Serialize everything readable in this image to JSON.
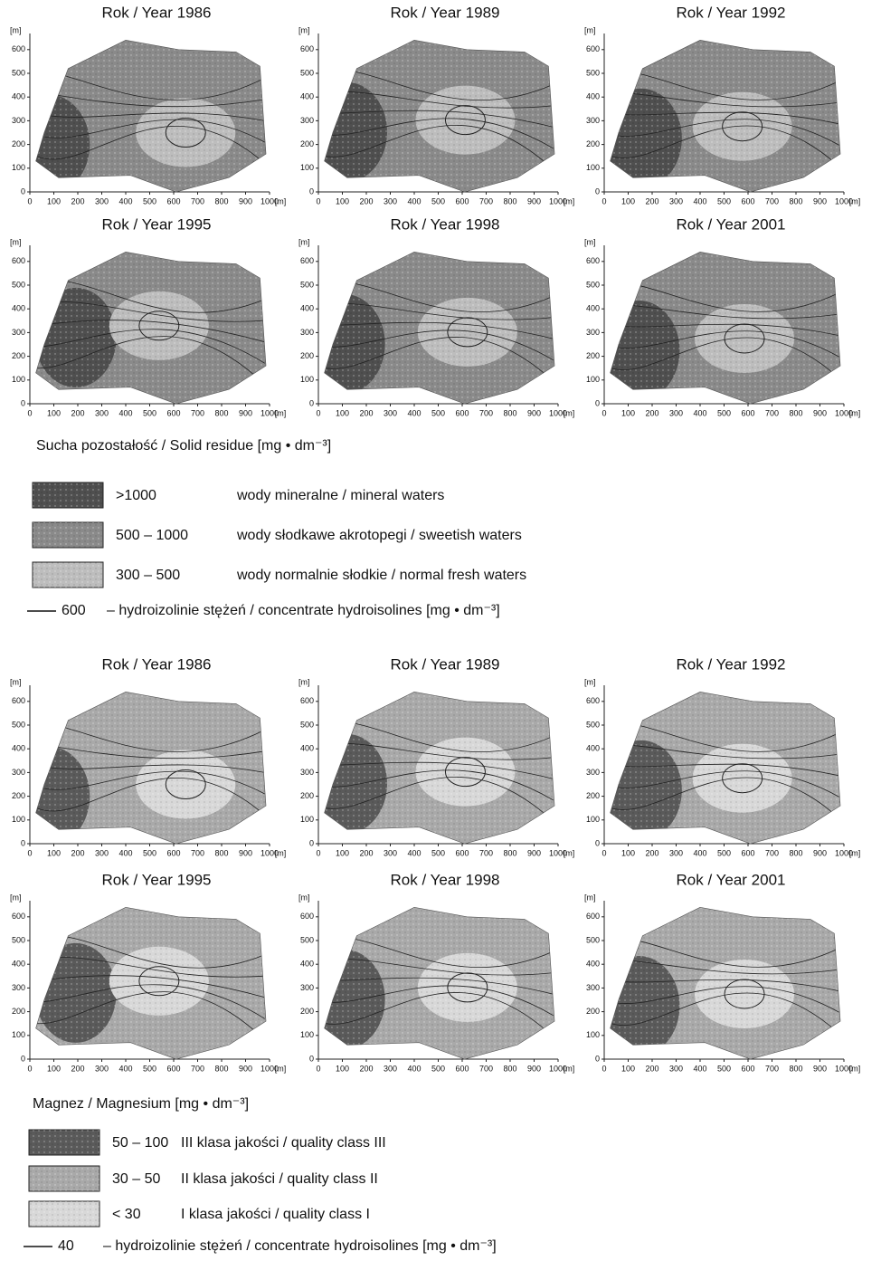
{
  "sections": [
    {
      "maps": [
        {
          "title": "Rok / Year 1986"
        },
        {
          "title": "Rok / Year 1989"
        },
        {
          "title": "Rok / Year 1992"
        },
        {
          "title": "Rok / Year 1995"
        },
        {
          "title": "Rok / Year 1998"
        },
        {
          "title": "Rok / Year 2001"
        }
      ],
      "legend": {
        "title": "Sucha pozostałość / Solid residue [mg • dm⁻³]",
        "items": [
          {
            "range": ">1000",
            "label": "wody mineralne / mineral waters"
          },
          {
            "range": "500 – 1000",
            "label": "wody słodkawe akrotopegi / sweetish waters"
          },
          {
            "range": "300 – 500",
            "label": "wody normalnie słodkie / normal fresh waters"
          }
        ],
        "isoline": {
          "value": "600",
          "label": "– hydroizolinie stężeń / concentrate hydroisolines [mg • dm⁻³]"
        }
      }
    },
    {
      "maps": [
        {
          "title": "Rok / Year 1986"
        },
        {
          "title": "Rok / Year 1989"
        },
        {
          "title": "Rok / Year 1992"
        },
        {
          "title": "Rok / Year 1995"
        },
        {
          "title": "Rok / Year 1998"
        },
        {
          "title": "Rok / Year 2001"
        }
      ],
      "legend": {
        "title": "Magnez / Magnesium [mg • dm⁻³]",
        "items": [
          {
            "range": "50 – 100",
            "label": "III klasa jakości / quality class III"
          },
          {
            "range": "30 – 50",
            "label": "II klasa jakości / quality class II"
          },
          {
            "range": "< 30",
            "label": "I klasa jakości / quality class I"
          }
        ],
        "isoline": {
          "value": "40",
          "label": "– hydroizolinie stężeń / concentrate hydroisolines [mg • dm⁻³]"
        }
      }
    }
  ],
  "axes": {
    "unit": "[m]",
    "yticks": [
      0,
      100,
      200,
      300,
      400,
      500,
      600
    ],
    "xticks": [
      0,
      100,
      200,
      300,
      400,
      500,
      600,
      700,
      800,
      900,
      1000
    ]
  }
}
